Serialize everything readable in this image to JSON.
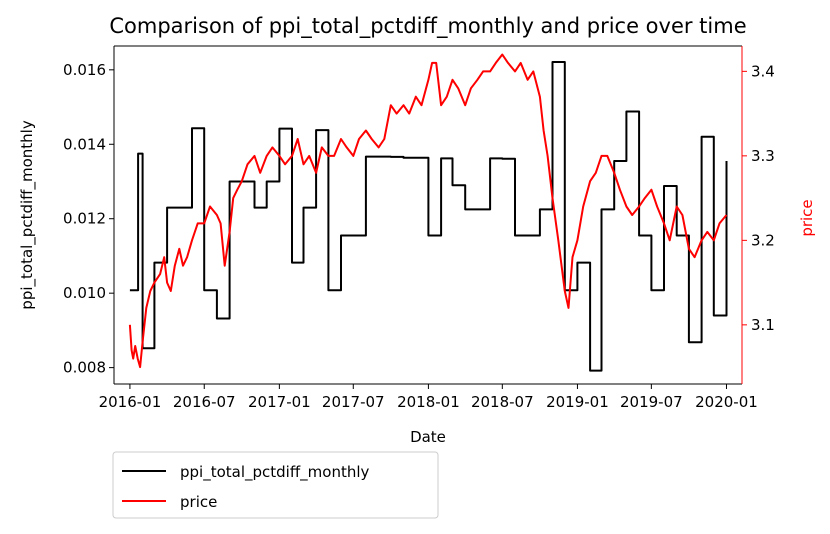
{
  "chart_data": {
    "type": "line",
    "title": "Comparison of ppi_total_pctdiff_monthly and price over time",
    "xlabel": "Date",
    "ylabel_left": "ppi_total_pctdiff_monthly",
    "ylabel_right": "price",
    "x_ticks": [
      "2016-01",
      "2016-07",
      "2017-01",
      "2017-07",
      "2018-01",
      "2018-07",
      "2019-01",
      "2019-07",
      "2020-01"
    ],
    "y_left_ticks": [
      "0.008",
      "0.010",
      "0.012",
      "0.014",
      "0.016"
    ],
    "y_right_ticks": [
      "3.1",
      "3.2",
      "3.3",
      "3.4"
    ],
    "x_range": [
      "2015-11-23",
      "2020-02-08"
    ],
    "y_left_range": [
      0.00756,
      0.01664
    ],
    "y_right_range": [
      3.03,
      3.43
    ],
    "legend_position": "below-left",
    "grid": false,
    "series": [
      {
        "name": "ppi_total_pctdiff_monthly",
        "axis": "left",
        "color": "#000000",
        "step": true,
        "x": [
          "2016-01-01",
          "2016-01-21",
          "2016-02-01",
          "2016-03-01",
          "2016-04-01",
          "2016-05-01",
          "2016-06-01",
          "2016-07-01",
          "2016-08-01",
          "2016-09-01",
          "2016-10-01",
          "2016-11-01",
          "2016-12-01",
          "2017-01-01",
          "2017-02-01",
          "2017-03-01",
          "2017-04-01",
          "2017-05-01",
          "2017-06-01",
          "2017-07-01",
          "2017-08-01",
          "2017-09-01",
          "2017-10-01",
          "2017-11-01",
          "2017-12-01",
          "2018-01-01",
          "2018-02-01",
          "2018-03-01",
          "2018-04-01",
          "2018-05-01",
          "2018-06-01",
          "2018-07-01",
          "2018-08-01",
          "2018-09-01",
          "2018-10-01",
          "2018-11-01",
          "2018-12-01",
          "2019-01-01",
          "2019-02-01",
          "2019-03-01",
          "2019-04-01",
          "2019-05-01",
          "2019-06-01",
          "2019-07-01",
          "2019-08-01",
          "2019-09-01",
          "2019-10-01",
          "2019-11-01",
          "2019-12-01",
          "2020-01-01"
        ],
        "values": [
          0.01008,
          0.01375,
          0.00852,
          0.01082,
          0.0123,
          0.0123,
          0.01443,
          0.01008,
          0.00932,
          0.013,
          0.013,
          0.0123,
          0.013,
          0.01442,
          0.01082,
          0.0123,
          0.01438,
          0.01008,
          0.01155,
          0.01155,
          0.01367,
          0.01367,
          0.01366,
          0.01364,
          0.01364,
          0.01155,
          0.01362,
          0.0129,
          0.01225,
          0.01225,
          0.01362,
          0.01361,
          0.01155,
          0.01155,
          0.01225,
          0.01621,
          0.01008,
          0.01082,
          0.00792,
          0.01225,
          0.01355,
          0.01488,
          0.01155,
          0.01008,
          0.01288,
          0.01155,
          0.00868,
          0.0142,
          0.0094,
          0.01355
        ]
      },
      {
        "name": "price",
        "axis": "right",
        "color": "#ff0000",
        "step": false,
        "x": [
          "2016-01-01",
          "2016-01-05",
          "2016-01-09",
          "2016-01-14",
          "2016-01-20",
          "2016-01-26",
          "2016-02-01",
          "2016-02-10",
          "2016-02-20",
          "2016-03-01",
          "2016-03-15",
          "2016-03-25",
          "2016-04-01",
          "2016-04-10",
          "2016-04-20",
          "2016-05-01",
          "2016-05-10",
          "2016-05-20",
          "2016-06-01",
          "2016-06-15",
          "2016-07-01",
          "2016-07-15",
          "2016-08-01",
          "2016-08-10",
          "2016-08-20",
          "2016-09-01",
          "2016-09-10",
          "2016-09-20",
          "2016-10-01",
          "2016-10-15",
          "2016-11-01",
          "2016-11-15",
          "2016-12-01",
          "2016-12-15",
          "2017-01-01",
          "2017-01-15",
          "2017-02-01",
          "2017-02-15",
          "2017-03-01",
          "2017-03-15",
          "2017-04-01",
          "2017-04-15",
          "2017-05-01",
          "2017-05-15",
          "2017-06-01",
          "2017-06-15",
          "2017-07-01",
          "2017-07-15",
          "2017-08-01",
          "2017-08-15",
          "2017-09-01",
          "2017-09-15",
          "2017-10-01",
          "2017-10-15",
          "2017-11-01",
          "2017-11-15",
          "2017-12-01",
          "2017-12-15",
          "2018-01-01",
          "2018-01-10",
          "2018-01-20",
          "2018-02-01",
          "2018-02-15",
          "2018-03-01",
          "2018-03-15",
          "2018-04-01",
          "2018-04-15",
          "2018-05-01",
          "2018-05-15",
          "2018-06-01",
          "2018-06-15",
          "2018-07-01",
          "2018-07-15",
          "2018-08-01",
          "2018-08-15",
          "2018-09-01",
          "2018-09-15",
          "2018-10-01",
          "2018-10-10",
          "2018-10-20",
          "2018-11-01",
          "2018-11-15",
          "2018-12-01",
          "2018-12-10",
          "2018-12-20",
          "2019-01-01",
          "2019-01-15",
          "2019-02-01",
          "2019-02-15",
          "2019-03-01",
          "2019-03-15",
          "2019-04-01",
          "2019-04-15",
          "2019-05-01",
          "2019-05-15",
          "2019-06-01",
          "2019-06-15",
          "2019-07-01",
          "2019-07-15",
          "2019-08-01",
          "2019-08-15",
          "2019-09-01",
          "2019-09-15",
          "2019-10-01",
          "2019-10-15",
          "2019-11-01",
          "2019-11-15",
          "2019-12-01",
          "2019-12-15",
          "2020-01-01"
        ],
        "values": [
          3.1,
          3.07,
          3.06,
          3.075,
          3.06,
          3.05,
          3.08,
          3.12,
          3.14,
          3.15,
          3.16,
          3.18,
          3.15,
          3.14,
          3.17,
          3.19,
          3.17,
          3.18,
          3.2,
          3.22,
          3.22,
          3.24,
          3.23,
          3.22,
          3.17,
          3.21,
          3.25,
          3.26,
          3.27,
          3.29,
          3.3,
          3.28,
          3.3,
          3.31,
          3.3,
          3.29,
          3.3,
          3.32,
          3.29,
          3.3,
          3.28,
          3.31,
          3.3,
          3.3,
          3.32,
          3.31,
          3.3,
          3.32,
          3.33,
          3.32,
          3.31,
          3.32,
          3.36,
          3.35,
          3.36,
          3.35,
          3.37,
          3.36,
          3.39,
          3.41,
          3.41,
          3.36,
          3.37,
          3.39,
          3.38,
          3.36,
          3.38,
          3.39,
          3.4,
          3.4,
          3.41,
          3.42,
          3.41,
          3.4,
          3.41,
          3.39,
          3.4,
          3.37,
          3.33,
          3.3,
          3.25,
          3.2,
          3.14,
          3.12,
          3.18,
          3.2,
          3.24,
          3.27,
          3.28,
          3.3,
          3.3,
          3.28,
          3.26,
          3.24,
          3.23,
          3.24,
          3.25,
          3.26,
          3.24,
          3.22,
          3.2,
          3.24,
          3.23,
          3.19,
          3.18,
          3.2,
          3.21,
          3.2,
          3.22,
          3.23
        ]
      }
    ]
  }
}
